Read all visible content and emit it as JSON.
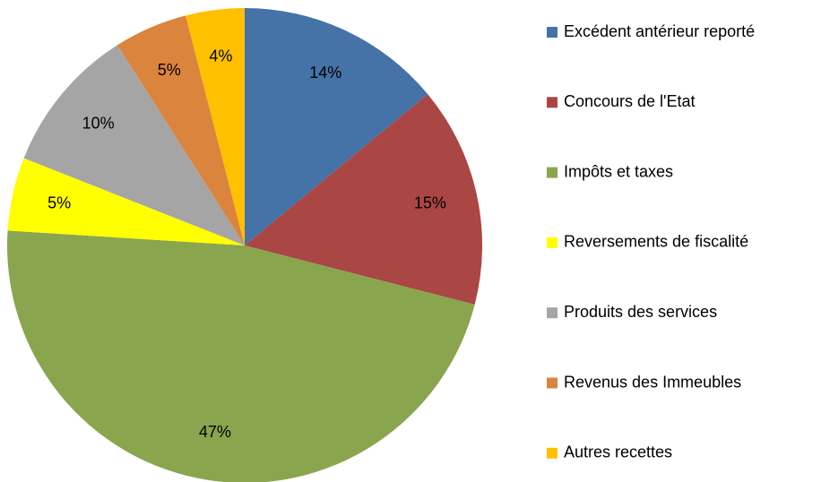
{
  "chart_data": {
    "type": "pie",
    "categories": [
      "Excédent antérieur reporté",
      "Concours de l'Etat",
      "Impôts et taxes",
      "Reversements de fiscalité",
      "Produits des services",
      "Revenus des Immeubles",
      "Autres recettes"
    ],
    "values": [
      14,
      15,
      47,
      5,
      10,
      5,
      4
    ],
    "value_labels": [
      "14%",
      "15%",
      "47%",
      "5%",
      "10%",
      "5%",
      "4%"
    ],
    "colors": [
      "#4572a7",
      "#aa4643",
      "#89a54e",
      "#ffff00",
      "#a5a5a5",
      "#db843d",
      "#ffc000"
    ],
    "legend": "right"
  }
}
